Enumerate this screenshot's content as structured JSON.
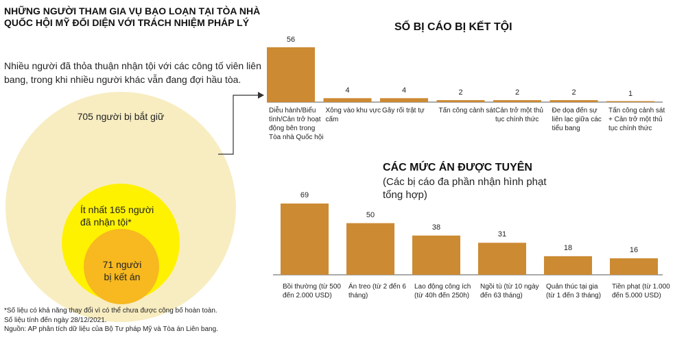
{
  "header": {
    "title": "NHỮNG NGƯỜI THAM GIA VỤ BẠO LOẠN TẠI TÒA NHÀ QUỐC HỘI MỸ ĐỐI DIỆN VỚI TRÁCH NHIỆM PHÁP LÝ",
    "subtitle": "Nhiều người đã thỏa thuận nhận tội với các công tố viên liên bang, trong khi nhiều người khác vẫn đang đợi hầu tòa."
  },
  "circles": {
    "arrested": "705 người bị bắt giữ",
    "pleaded": "Ít nhất 165 người đã nhận tội*",
    "sentenced": "71 người bị kết án",
    "colors": {
      "outer": "#f8edc1",
      "middle": "#fff200",
      "inner": "#f7b820"
    }
  },
  "footnote": {
    "line1": "*Số liệu có khả năng thay đổi vì có thể chưa được công bố hoàn toàn.",
    "line2": "Số liệu tính đến ngày 28/12/2021.",
    "line3": "Nguồn: AP phân tích dữ liệu của Bộ Tư pháp Mỹ và Tòa án Liên bang."
  },
  "chart_data": [
    {
      "type": "bar",
      "title": "SỐ BỊ CÁO BỊ KẾT TỘI",
      "categories": [
        "Diễu hành/Biểu tình/Cản trở hoạt động bên trong Tòa nhà Quốc hội",
        "Xông vào khu vực cấm",
        "Gây rối trật tự",
        "Tấn công cảnh sát",
        "Cản trở một thủ tục chính thức",
        "Đe dọa đến sự liên lạc giữa các tiểu bang",
        "Tấn công cảnh sát + Cản trở một thủ tục chính thức"
      ],
      "values": [
        56,
        4,
        4,
        2,
        2,
        2,
        1
      ],
      "ylim": [
        0,
        56
      ],
      "color": "#cc8a33",
      "grid": false
    },
    {
      "type": "bar",
      "title": "CÁC MỨC ÁN ĐƯỢC TUYÊN",
      "subtitle": "(Các bị cáo đa phần nhận hình phạt tổng hợp)",
      "categories": [
        "Bồi thường (từ 500 đến 2.000 USD)",
        "Án treo (từ 2 đến 6 tháng)",
        "Lao động công ích (từ 40h đến 250h)",
        "Ngồi tù (từ 10 ngày đến 63 tháng)",
        "Quản thúc tại gia (từ 1 đến 3 tháng)",
        "Tiền phạt (từ 1.000 đến 5.000 USD)"
      ],
      "values": [
        69,
        50,
        38,
        31,
        18,
        16
      ],
      "ylim": [
        0,
        69
      ],
      "color": "#cc8a33",
      "grid": false
    }
  ]
}
